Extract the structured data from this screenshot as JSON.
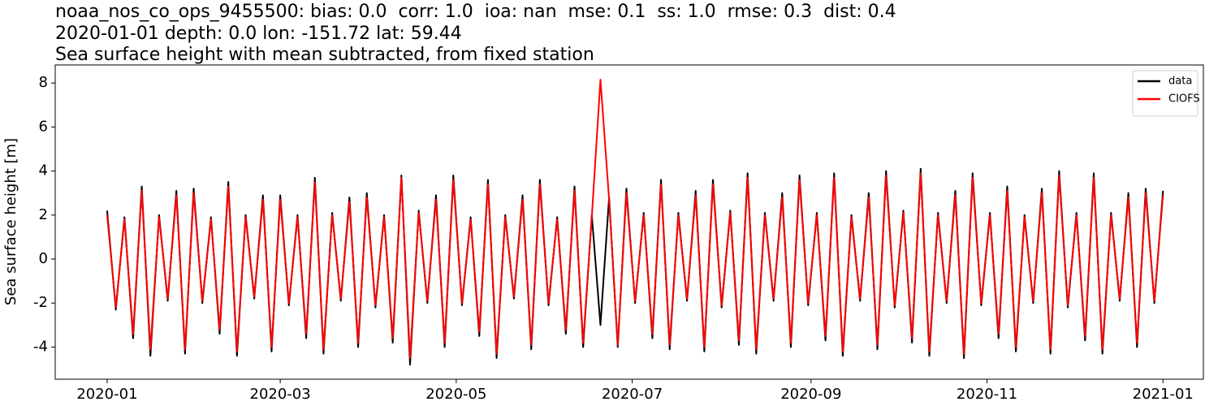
{
  "chart_data": {
    "type": "line",
    "title_lines": [
      "noaa_nos_co_ops_9455500: bias: 0.0  corr: 1.0  ioa: nan  mse: 0.1  ss: 1.0  rmse: 0.3  dist: 0.4",
      "2020-01-01 depth: 0.0 lon: -151.72 lat: 59.44",
      "Sea surface height with mean subtracted, from fixed station"
    ],
    "ylabel": "Sea surface height [m]",
    "x": [
      0,
      3,
      6,
      9,
      12,
      15,
      18,
      21,
      24,
      27,
      30,
      33,
      36,
      39,
      42,
      45,
      48,
      51,
      54,
      57,
      60,
      63,
      66,
      69,
      72,
      75,
      78,
      81,
      84,
      87,
      90,
      93,
      96,
      99,
      102,
      105,
      108,
      111,
      114,
      117,
      120,
      123,
      126,
      129,
      132,
      135,
      138,
      141,
      144,
      147,
      150,
      153,
      156,
      159,
      162,
      165,
      168,
      171,
      174,
      177,
      180,
      183,
      186,
      189,
      192,
      195,
      198,
      201,
      204,
      207,
      210,
      213,
      216,
      219,
      222,
      225,
      228,
      231,
      234,
      237,
      240,
      243,
      246,
      249,
      252,
      255,
      258,
      261,
      264,
      267,
      270,
      273,
      276,
      279,
      282,
      285,
      288,
      291,
      294,
      297,
      300,
      303,
      306,
      309,
      312,
      315,
      318,
      321,
      324,
      327,
      330,
      333,
      336,
      339,
      342,
      345,
      348,
      351,
      354,
      357,
      360,
      363,
      366
    ],
    "series": [
      {
        "name": "data",
        "color": "#000000",
        "values": [
          2.2,
          -2.3,
          1.9,
          -3.6,
          3.3,
          -4.4,
          2.0,
          -1.9,
          3.1,
          -4.3,
          3.2,
          -2.0,
          1.9,
          -3.4,
          3.5,
          -4.4,
          2.0,
          -1.8,
          2.9,
          -4.2,
          2.9,
          -2.1,
          2.0,
          -3.6,
          3.7,
          -4.3,
          2.1,
          -1.9,
          2.8,
          -4.0,
          3.0,
          -2.2,
          2.0,
          -3.8,
          3.8,
          -4.8,
          2.2,
          -2.0,
          2.9,
          -4.0,
          3.8,
          -2.1,
          1.9,
          -3.5,
          3.6,
          -4.5,
          2.0,
          -1.8,
          2.9,
          -4.1,
          3.6,
          -2.1,
          1.9,
          -3.4,
          3.3,
          -4.0,
          2.0,
          -3.0,
          2.8,
          -4.0,
          3.2,
          -2.0,
          2.1,
          -3.6,
          3.6,
          -4.1,
          2.1,
          -1.9,
          3.1,
          -4.2,
          3.6,
          -2.2,
          2.2,
          -3.9,
          3.9,
          -4.3,
          2.1,
          -1.9,
          3.0,
          -4.0,
          3.8,
          -2.1,
          2.1,
          -3.7,
          3.9,
          -4.4,
          2.0,
          -1.9,
          3.0,
          -4.1,
          4.0,
          -2.2,
          2.2,
          -3.8,
          4.1,
          -4.4,
          2.1,
          -2.0,
          3.1,
          -4.5,
          3.9,
          -2.1,
          2.1,
          -3.6,
          3.3,
          -4.2,
          2.0,
          -2.0,
          3.2,
          -4.3,
          4.0,
          -2.2,
          2.1,
          -3.7,
          3.9,
          -4.3,
          2.1,
          -1.9,
          3.0,
          -4.0,
          3.2,
          -2.0,
          3.1
        ]
      },
      {
        "name": "CIOFS",
        "color": "#ff0000",
        "values": [
          2.0,
          -2.2,
          1.8,
          -3.4,
          3.1,
          -4.1,
          1.9,
          -1.8,
          2.9,
          -4.1,
          3.0,
          -1.9,
          1.8,
          -3.2,
          3.3,
          -4.2,
          1.9,
          -1.7,
          2.7,
          -4.0,
          2.7,
          -2.0,
          1.9,
          -3.4,
          3.5,
          -4.1,
          2.0,
          -1.8,
          2.6,
          -3.8,
          2.8,
          -2.1,
          1.9,
          -3.6,
          3.7,
          -4.5,
          2.1,
          -1.9,
          2.7,
          -3.8,
          3.6,
          -2.0,
          1.8,
          -3.3,
          3.4,
          -4.3,
          1.9,
          -1.7,
          2.7,
          -3.9,
          3.4,
          -2.0,
          1.8,
          -3.2,
          3.1,
          -3.8,
          1.9,
          8.15,
          2.7,
          -3.9,
          3.0,
          -1.9,
          2.0,
          -3.4,
          3.4,
          -3.9,
          2.0,
          -1.8,
          2.9,
          -4.0,
          3.4,
          -2.1,
          2.1,
          -3.7,
          3.7,
          -4.1,
          2.0,
          -1.8,
          2.8,
          -3.8,
          3.6,
          -2.0,
          2.0,
          -3.5,
          3.7,
          -4.2,
          1.9,
          -1.8,
          2.8,
          -3.9,
          3.8,
          -2.1,
          2.1,
          -3.6,
          3.9,
          -4.2,
          2.0,
          -1.9,
          2.9,
          -4.3,
          3.7,
          -2.0,
          2.0,
          -3.4,
          3.1,
          -4.0,
          1.9,
          -1.9,
          3.0,
          -4.1,
          3.8,
          -2.1,
          2.0,
          -3.5,
          3.7,
          -4.1,
          2.0,
          -1.8,
          2.8,
          -3.8,
          3.0,
          -1.9,
          2.9
        ]
      }
    ],
    "xlim": [
      -18,
      380
    ],
    "xticks": [
      {
        "value": 0,
        "label": "2020-01"
      },
      {
        "value": 60,
        "label": "2020-03"
      },
      {
        "value": 121,
        "label": "2020-05"
      },
      {
        "value": 182,
        "label": "2020-07"
      },
      {
        "value": 244,
        "label": "2020-09"
      },
      {
        "value": 305,
        "label": "2020-11"
      },
      {
        "value": 366,
        "label": "2021-01"
      }
    ],
    "ylim": [
      -5.46,
      8.82
    ],
    "yticks": [
      -4,
      -2,
      0,
      2,
      4,
      6,
      8
    ],
    "legend": "upper right",
    "grid": false
  }
}
